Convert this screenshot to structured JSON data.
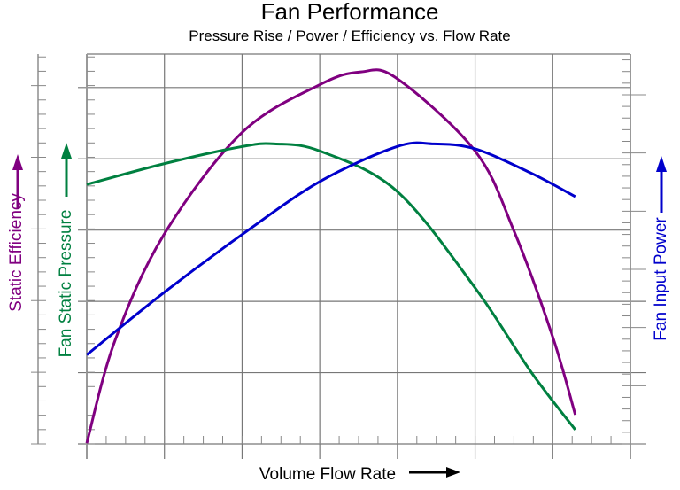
{
  "chart_data": {
    "type": "line",
    "title": "Fan Performance",
    "subtitle": "Pressure Rise / Power / Efficiency vs. Flow Rate",
    "xlabel": "Volume Flow Rate",
    "xlim": [
      0,
      7
    ],
    "ylim": [
      0,
      5.47
    ],
    "grid": true,
    "axes": [
      {
        "label": "Static Efficiency",
        "side": "left-outer",
        "color": "#800080"
      },
      {
        "label": "Fan Static Pressure",
        "side": "left",
        "color": "#008040"
      },
      {
        "label": "Fan Input Power",
        "side": "right",
        "color": "#0000cc"
      }
    ],
    "series": [
      {
        "name": "Static Efficiency",
        "color": "#800080",
        "x": [
          0,
          0.36,
          0.99,
          1.99,
          3.0,
          3.53,
          3.99,
          5.0,
          5.5,
          6.0,
          6.29
        ],
        "y": [
          0.01,
          1.44,
          2.93,
          4.36,
          5.04,
          5.22,
          5.13,
          4.11,
          2.99,
          1.5,
          0.41
        ]
      },
      {
        "name": "Fan Static Pressure",
        "color": "#008040",
        "x": [
          0,
          0.99,
          1.99,
          2.42,
          3.0,
          3.99,
          5.0,
          5.72,
          6.29
        ],
        "y": [
          3.64,
          3.93,
          4.17,
          4.21,
          4.11,
          3.55,
          2.19,
          1.01,
          0.2
        ]
      },
      {
        "name": "Fan Input Power",
        "color": "#0000cc",
        "x": [
          0,
          0.99,
          1.99,
          3.0,
          3.99,
          4.47,
          5.0,
          5.72,
          6.29
        ],
        "y": [
          1.25,
          2.12,
          2.93,
          3.68,
          4.17,
          4.21,
          4.14,
          3.8,
          3.47
        ]
      }
    ]
  }
}
